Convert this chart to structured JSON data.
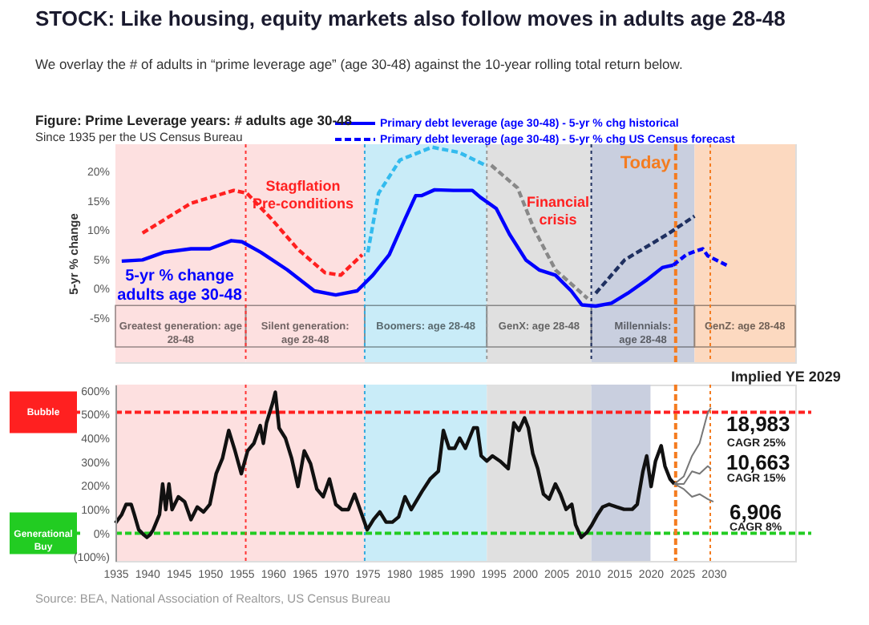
{
  "chart_data": [
    {
      "type": "line",
      "title": "STOCK: Like housing, equity markets also follow moves in adults age 28-48",
      "subtitle": "We overlay the # of adults in “prime leverage age” (age 30-48) against the 10-year rolling total return below.",
      "ylabel": "5-yr % change",
      "xlim": [
        1935,
        2043
      ],
      "ylim": [
        -12.6,
        24.7
      ],
      "yticks": [
        {
          "value": -5,
          "label": "-5%"
        },
        {
          "value": 0,
          "label": "0%"
        },
        {
          "value": 5,
          "label": "5%"
        },
        {
          "value": 10,
          "label": "10%"
        },
        {
          "value": 15,
          "label": "15%"
        },
        {
          "value": 20,
          "label": "20%"
        }
      ],
      "tick_labels": "y",
      "legend": "top",
      "grid": false,
      "series": [
        {
          "name": "Primary debt leverage (age 30-48) - 5-yr % chg historical",
          "color": "#0000ff",
          "line_style": "solid",
          "x": [
            1936,
            1939.3,
            1942.7,
            1947,
            1950,
            1953.4,
            1955.1,
            1958.1,
            1962.3,
            1966.6,
            1970,
            1973.4,
            1975.9,
            1978.5,
            1981,
            1982.7,
            1983.6,
            1985.7,
            1988.7,
            1991.7,
            1993,
            1995.5,
            1997.6,
            2000.2,
            2002.3,
            2004.9,
            2007.4,
            2009.1,
            2011.3,
            2013.8,
            2016.4,
            2019.3,
            2021.9,
            2023.6
          ],
          "values": [
            4.7,
            4.9,
            6.2,
            6.8,
            6.8,
            8.2,
            8.0,
            6.2,
            3.2,
            -0.4,
            -1.1,
            -0.4,
            2.3,
            5.8,
            11.9,
            15.9,
            15.9,
            16.9,
            16.8,
            16.8,
            15.6,
            13.7,
            9.3,
            4.9,
            3.2,
            2.3,
            -0.4,
            -2.8,
            -3.0,
            -2.5,
            -0.8,
            1.4,
            3.6,
            4.0
          ]
        },
        {
          "name": "Primary debt leverage (age 30-48) - 5-yr % chg US Census forecast",
          "color": "#0000ff",
          "line_style": "dashed",
          "x": [
            2023.6,
            2025.7,
            2027.4,
            2028.3,
            2029.1,
            2032.1
          ],
          "values": [
            4.0,
            5.8,
            6.5,
            6.8,
            5.6,
            4.0
          ]
        },
        {
          "color": "#ff2020",
          "line_style": "dashed",
          "x": [
            1939.3,
            1947,
            1953.8,
            1955.9,
            1959.8,
            1964,
            1968.3,
            1970.8,
            1974.2
          ],
          "values": [
            9.5,
            14.6,
            16.8,
            16.3,
            11.9,
            6.7,
            2.7,
            2.3,
            5.8
          ]
        },
        {
          "color": "#33bbee",
          "line_style": "dashed",
          "x": [
            1975.1,
            1976.8,
            1980.2,
            1985.3,
            1989.6,
            1993.8
          ],
          "values": [
            6.2,
            16.3,
            22,
            24.2,
            23.3,
            21.1
          ]
        },
        {
          "color": "#888888",
          "line_style": "dashed",
          "x": [
            1994.7,
            1998.9,
            2001.5,
            2004.9,
            2010
          ],
          "values": [
            21.1,
            17.2,
            10.2,
            3.2,
            -1.7
          ]
        },
        {
          "color": "#1f3060",
          "line_style": "dashed",
          "x": [
            2011.3,
            2015.9,
            2022.7,
            2027
          ],
          "values": [
            -0.8,
            4.9,
            9.3,
            12.4
          ]
        }
      ],
      "bands": [
        {
          "axis": "x",
          "from": 1935,
          "to": 1955.7,
          "label": "Greatest generation: age\n28-48",
          "color": "#fde0e0"
        },
        {
          "axis": "x",
          "from": 1955.7,
          "to": 1974.6,
          "label": "Silent generation:\nage 28-48",
          "color": "#fde0e0"
        },
        {
          "axis": "x",
          "from": 1974.6,
          "to": 1994,
          "label": "Boomers: age 28-48",
          "color": "#c9ecf8"
        },
        {
          "axis": "x",
          "from": 1994,
          "to": 2010.6,
          "label": "GenX: age 28-48",
          "color": "#e0e0e0"
        },
        {
          "axis": "x",
          "from": 2010.6,
          "to": 2027,
          "label": "Millennials:\nage 28-48",
          "color": "#c9cfdf"
        },
        {
          "axis": "x",
          "from": 2027,
          "to": 2043,
          "label": "GenZ: age 28-48",
          "color": "#fcd9c0"
        }
      ],
      "ref_lines": [
        {
          "axis": "x",
          "value": 1955.7,
          "color": "#ff3333",
          "line_style": "dotted"
        },
        {
          "axis": "x",
          "value": 1974.6,
          "color": "#33aadd",
          "line_style": "dotted"
        },
        {
          "axis": "x",
          "value": 1994,
          "color": "#999999",
          "line_style": "dotted"
        },
        {
          "axis": "x",
          "value": 2010.6,
          "color": "#1f3060",
          "line_style": "dotted"
        },
        {
          "axis": "x",
          "value": 2024,
          "label": "Today",
          "color": "#f47c20",
          "line_style": "dashed"
        },
        {
          "axis": "x",
          "value": 2029.5,
          "color": "#f47c20",
          "line_style": "dotted"
        }
      ],
      "annotations": [
        "Figure: Prime Leverage years:  # adults age 30-48",
        "Since 1935 per the US Census Bureau",
        "Stagflation\nPre-conditions",
        "Financial\ncrisis",
        "5-yr % change\nadults age 30-48"
      ]
    },
    {
      "type": "line",
      "xlim": [
        1935,
        2043
      ],
      "xticks": [
        1935,
        1940,
        1945,
        1950,
        1955,
        1960,
        1965,
        1970,
        1975,
        1980,
        1985,
        1990,
        1995,
        2000,
        2005,
        2010,
        2015,
        2020,
        2025,
        2030
      ],
      "ylim": [
        -116,
        626
      ],
      "yticks": [
        {
          "value": -100,
          "label": "(100%)"
        },
        {
          "value": 0,
          "label": "0%"
        },
        {
          "value": 100,
          "label": "100%"
        },
        {
          "value": 200,
          "label": "200%"
        },
        {
          "value": 300,
          "label": "300%"
        },
        {
          "value": 400,
          "label": "400%"
        },
        {
          "value": 500,
          "label": "500%"
        },
        {
          "value": 600,
          "label": "600%"
        }
      ],
      "grid": false,
      "series": [
        {
          "color": "#111111",
          "x": [
            1935,
            1936,
            1936.7,
            1937.5,
            1938,
            1938.7,
            1939.5,
            1940,
            1940.5,
            1941,
            1942,
            1942.5,
            1943,
            1943.5,
            1944,
            1945,
            1946,
            1947,
            1948,
            1949,
            1950,
            1951,
            1952,
            1953,
            1954,
            1955,
            1956,
            1957,
            1958,
            1958.5,
            1959,
            1960,
            1960.4,
            1961,
            1962,
            1963,
            1964,
            1965,
            1966,
            1967,
            1968,
            1969,
            1970,
            1971,
            1972,
            1973,
            1974,
            1975,
            1976,
            1977,
            1978,
            1979,
            1980,
            1981,
            1982,
            1983.7,
            1985,
            1986.3,
            1987.1,
            1988,
            1988.9,
            1989.7,
            1990.6,
            1991.9,
            1992.5,
            1993.1,
            1994,
            1994.9,
            1996.1,
            1997.4,
            1998.3,
            1999.1,
            2000,
            2000.6,
            2001.3,
            2002.1,
            2003,
            2003.9,
            2004.9,
            2005.7,
            2006.6,
            2007.5,
            2008.1,
            2009,
            2009.9,
            2010.7,
            2011.6,
            2012.4,
            2013.4,
            2014.6,
            2015.8,
            2017.1,
            2017.9,
            2018.8,
            2019.4,
            2020.1,
            2020.8,
            2021.7,
            2022.3,
            2023.1,
            2023.8
          ],
          "values": [
            43,
            79,
            122,
            122,
            79,
            15,
            -6,
            -17,
            -6,
            15,
            79,
            208,
            100,
            208,
            100,
            154,
            133,
            58,
            111,
            90,
            122,
            251,
            315,
            433,
            347,
            251,
            347,
            379,
            454,
            379,
            465,
            551,
            594,
            443,
            401,
            315,
            197,
            347,
            293,
            186,
            154,
            229,
            122,
            100,
            100,
            165,
            90,
            15,
            58,
            90,
            47,
            47,
            69,
            154,
            100,
            176,
            229,
            261,
            433,
            358,
            358,
            401,
            358,
            444,
            444,
            326,
            304,
            326,
            304,
            272,
            465,
            433,
            486,
            444,
            336,
            272,
            165,
            144,
            208,
            165,
            101,
            122,
            36,
            -17,
            4,
            36,
            79,
            111,
            122,
            111,
            101,
            101,
            122,
            261,
            326,
            197,
            304,
            369,
            283,
            229,
            208
          ]
        },
        {
          "name": "CAGR 25%",
          "color": "#777777",
          "x": [
            2023.8,
            2025.3,
            2026.6,
            2027.8,
            2029.1,
            2029.6
          ],
          "values": [
            208,
            240,
            326,
            379,
            508,
            529
          ]
        },
        {
          "name": "CAGR 15%",
          "color": "#777777",
          "x": [
            2023.8,
            2025.3,
            2026.6,
            2027.8,
            2029.1,
            2029.6
          ],
          "values": [
            208,
            208,
            261,
            251,
            283,
            272
          ]
        },
        {
          "name": "CAGR 8%",
          "color": "#777777",
          "x": [
            2023.8,
            2025.3,
            2026.6,
            2027.8,
            2029.1,
            2030
          ],
          "values": [
            208,
            186,
            154,
            165,
            144,
            133
          ]
        }
      ],
      "bands": [
        {
          "axis": "x",
          "from": 1935,
          "to": 1974.6,
          "color": "#fde0e0"
        },
        {
          "axis": "x",
          "from": 1974.6,
          "to": 1994,
          "color": "#c9ecf8"
        },
        {
          "axis": "x",
          "from": 1994,
          "to": 2010.6,
          "color": "#e0e0e0"
        },
        {
          "axis": "x",
          "from": 2010.6,
          "to": 2020,
          "color": "#c9cfdf"
        }
      ],
      "ref_lines": [
        {
          "axis": "y",
          "value": 510,
          "label": "Bubble",
          "color": "#ff2020",
          "line_style": "dashed"
        },
        {
          "axis": "y",
          "value": 0,
          "label": "Generational Buy",
          "color": "#22cc22",
          "line_style": "dashed"
        },
        {
          "axis": "x",
          "value": 1955.7,
          "color": "#ff3333",
          "line_style": "dotted"
        },
        {
          "axis": "x",
          "value": 1974.6,
          "color": "#33aadd",
          "line_style": "dotted"
        },
        {
          "axis": "x",
          "value": 2024,
          "color": "#f47c20",
          "line_style": "dashed"
        },
        {
          "axis": "x",
          "value": 2029.5,
          "color": "#f47c20",
          "line_style": "dotted"
        }
      ],
      "annotations": [
        "Implied YE 2029",
        "Source: BEA, National Association of Realtors, US Census Bureau",
        "18,983",
        "10,663",
        "6,906"
      ]
    }
  ]
}
